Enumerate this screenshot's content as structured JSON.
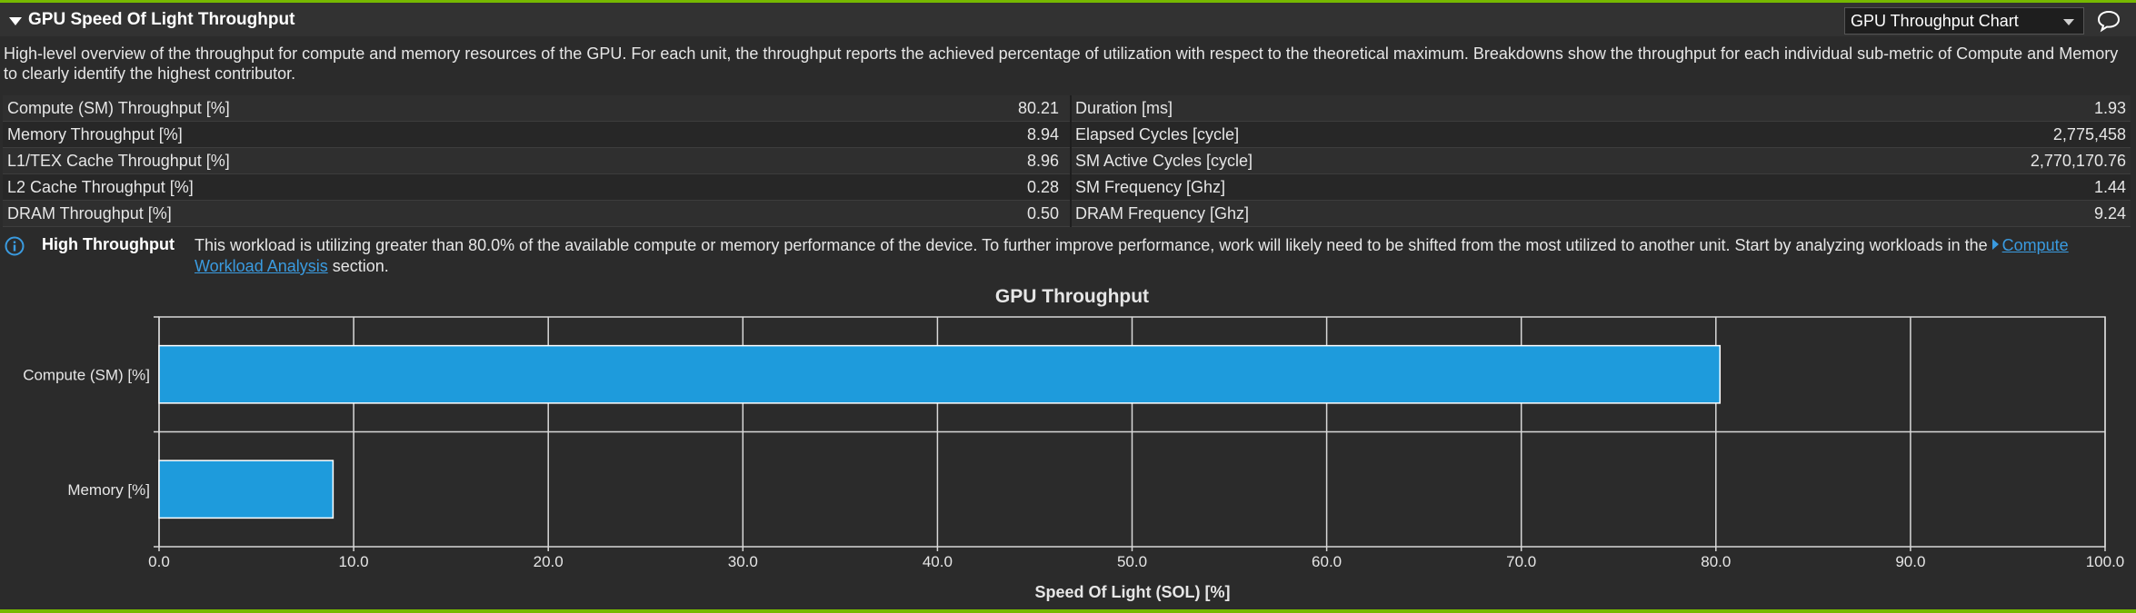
{
  "header": {
    "title": "GPU Speed Of Light Throughput",
    "chart_selector_value": "GPU Throughput Chart"
  },
  "description": "High-level overview of the throughput for compute and memory resources of the GPU. For each unit, the throughput reports the achieved percentage of utilization with respect to the theoretical maximum. Breakdowns show the throughput for each individual sub-metric of Compute and Memory to clearly identify the highest contributor.",
  "metrics": [
    {
      "left_label": "Compute (SM) Throughput [%]",
      "left_value": "80.21",
      "right_label": "Duration [ms]",
      "right_value": "1.93"
    },
    {
      "left_label": "Memory Throughput [%]",
      "left_value": "8.94",
      "right_label": "Elapsed Cycles [cycle]",
      "right_value": "2,775,458"
    },
    {
      "left_label": "L1/TEX Cache Throughput [%]",
      "left_value": "8.96",
      "right_label": "SM Active Cycles [cycle]",
      "right_value": "2,770,170.76"
    },
    {
      "left_label": "L2 Cache Throughput [%]",
      "left_value": "0.28",
      "right_label": "SM Frequency [Ghz]",
      "right_value": "1.44"
    },
    {
      "left_label": "DRAM Throughput [%]",
      "left_value": "0.50",
      "right_label": "DRAM Frequency [Ghz]",
      "right_value": "9.24"
    }
  ],
  "note": {
    "title": "High Throughput",
    "text_before_link": "This workload is utilizing greater than 80.0% of the available compute or memory performance of the device. To further improve performance, work will likely need to be shifted from the most utilized to another unit. Start by analyzing workloads in the ",
    "link_text": "Compute Workload Analysis",
    "text_after_link": " section."
  },
  "icons": {
    "collapse": "triangle-down-icon",
    "dropdown": "chevron-down-icon",
    "comment": "speech-bubble-icon",
    "info": "info-icon",
    "link": "triangle-right-icon"
  },
  "colors": {
    "accent": "#76b900",
    "bar_fill": "#1e9bdc",
    "link": "#3a9be0"
  },
  "chart_data": {
    "type": "bar",
    "orientation": "horizontal",
    "title": "GPU Throughput",
    "xlabel": "Speed Of Light (SOL) [%]",
    "categories": [
      "Compute (SM) [%]",
      "Memory [%]"
    ],
    "values": [
      80.21,
      8.94
    ],
    "xlim": [
      0,
      100
    ],
    "xticks": [
      "0.0",
      "10.0",
      "20.0",
      "30.0",
      "40.0",
      "50.0",
      "60.0",
      "70.0",
      "80.0",
      "90.0",
      "100.0"
    ],
    "grid": true
  }
}
